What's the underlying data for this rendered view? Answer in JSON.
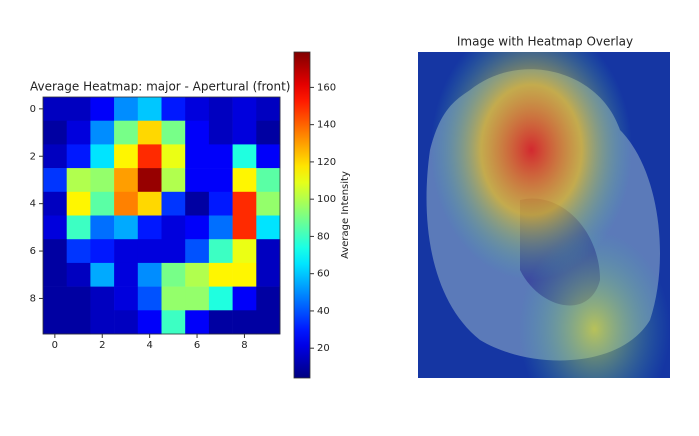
{
  "chart_data": {
    "type": "heatmap",
    "title": "Average Heatmap: major - Apertural (front)",
    "colormap": "jet",
    "z": [
      [
        15,
        15,
        25,
        50,
        60,
        30,
        20,
        15,
        20,
        15
      ],
      [
        10,
        20,
        50,
        90,
        120,
        90,
        25,
        15,
        20,
        10
      ],
      [
        15,
        30,
        65,
        115,
        150,
        110,
        25,
        25,
        75,
        25
      ],
      [
        35,
        100,
        95,
        130,
        175,
        100,
        25,
        25,
        115,
        85
      ],
      [
        15,
        115,
        85,
        135,
        120,
        35,
        10,
        30,
        150,
        95
      ],
      [
        20,
        80,
        45,
        55,
        30,
        20,
        25,
        45,
        150,
        65
      ],
      [
        10,
        35,
        30,
        20,
        20,
        20,
        40,
        80,
        110,
        15
      ],
      [
        10,
        15,
        55,
        20,
        50,
        90,
        100,
        115,
        115,
        15
      ],
      [
        10,
        10,
        15,
        20,
        40,
        95,
        95,
        75,
        25,
        10
      ],
      [
        10,
        10,
        15,
        15,
        25,
        80,
        25,
        10,
        10,
        10
      ]
    ],
    "xlim": [
      -0.5,
      9.5
    ],
    "ylim": [
      -0.5,
      9.5
    ],
    "xticks": [
      0,
      2,
      4,
      6,
      8
    ],
    "yticks": [
      0,
      2,
      4,
      6,
      8
    ],
    "colorbar_label": "Average Intensity",
    "colorbar_lim": [
      4,
      179
    ],
    "colorbar_ticks": [
      20,
      40,
      60,
      80,
      100,
      120,
      140,
      160
    ]
  },
  "overlay_image": {
    "title": "Image with Heatmap Overlay"
  }
}
